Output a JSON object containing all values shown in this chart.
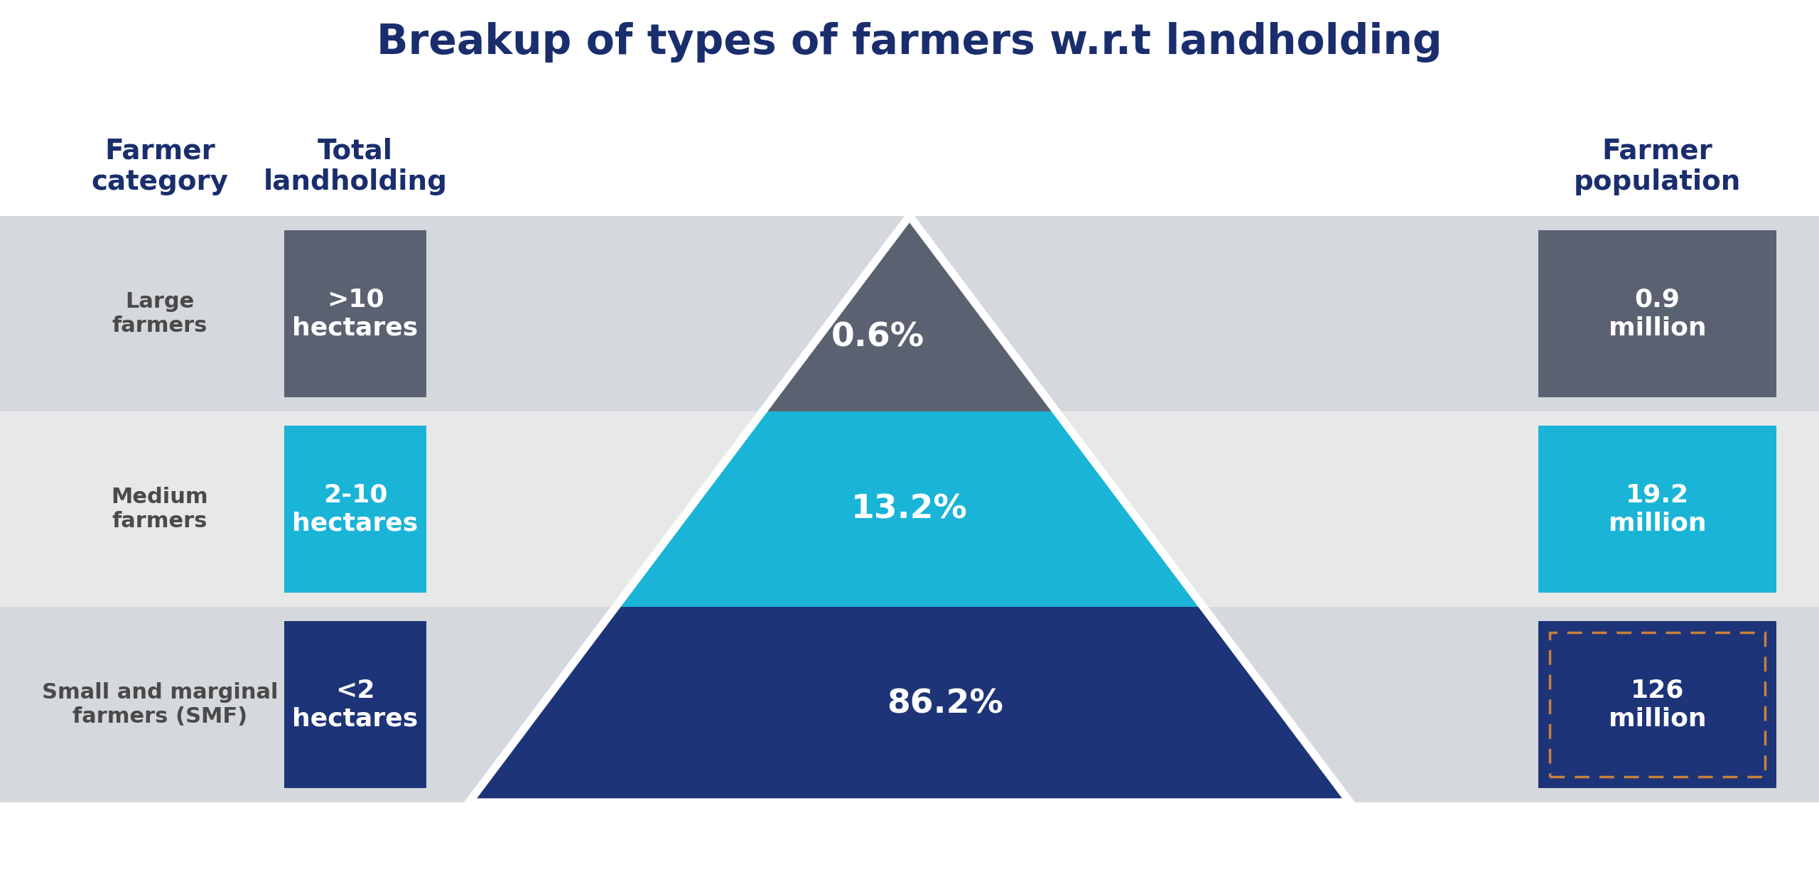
{
  "title": "Breakup of types of farmers w.r.t landholding",
  "title_color": "#1a2e6e",
  "title_fontsize": 42,
  "background_color": "#ffffff",
  "col_header_farmer_cat": "Farmer\ncategory",
  "col_header_landholding": "Total\nlandholding",
  "col_header_population": "Farmer\npopulation",
  "col_header_color": "#1a2e6e",
  "col_header_fontsize": 28,
  "rows": [
    {
      "label": "Large\nfarmers",
      "landholding": ">10\nhectares",
      "landholding_bg": "#5a6272",
      "row_bg": "#d5d8dc",
      "percentage": "0.6%",
      "triangle_color": "#5a6272",
      "population": "0.9\nmillion",
      "population_bg": "#5a6272",
      "pop_dashed": false
    },
    {
      "label": "Medium\nfarmers",
      "landholding": "2-10\nhectares",
      "landholding_bg": "#1ab4d7",
      "row_bg": "#e8e8e8",
      "percentage": "13.2%",
      "triangle_color": "#1ab4d7",
      "population": "19.2\nmillion",
      "population_bg": "#1ab4d7",
      "pop_dashed": false
    },
    {
      "label": "Small and marginal\nfarmers (SMF)",
      "landholding": "<2\nhectares",
      "landholding_bg": "#1e3478",
      "row_bg": "#d5d8dc",
      "percentage": "86.2%",
      "triangle_color": "#1e3478",
      "population": "126\nmillion",
      "population_bg": "#1e3478",
      "pop_dashed": true,
      "dashed_color": "#c8813a"
    }
  ],
  "text_color_white": "#ffffff",
  "text_color_dark": "#4a4a4a",
  "label_fontsize": 22,
  "data_fontsize": 26,
  "pct_fontsize": 34
}
